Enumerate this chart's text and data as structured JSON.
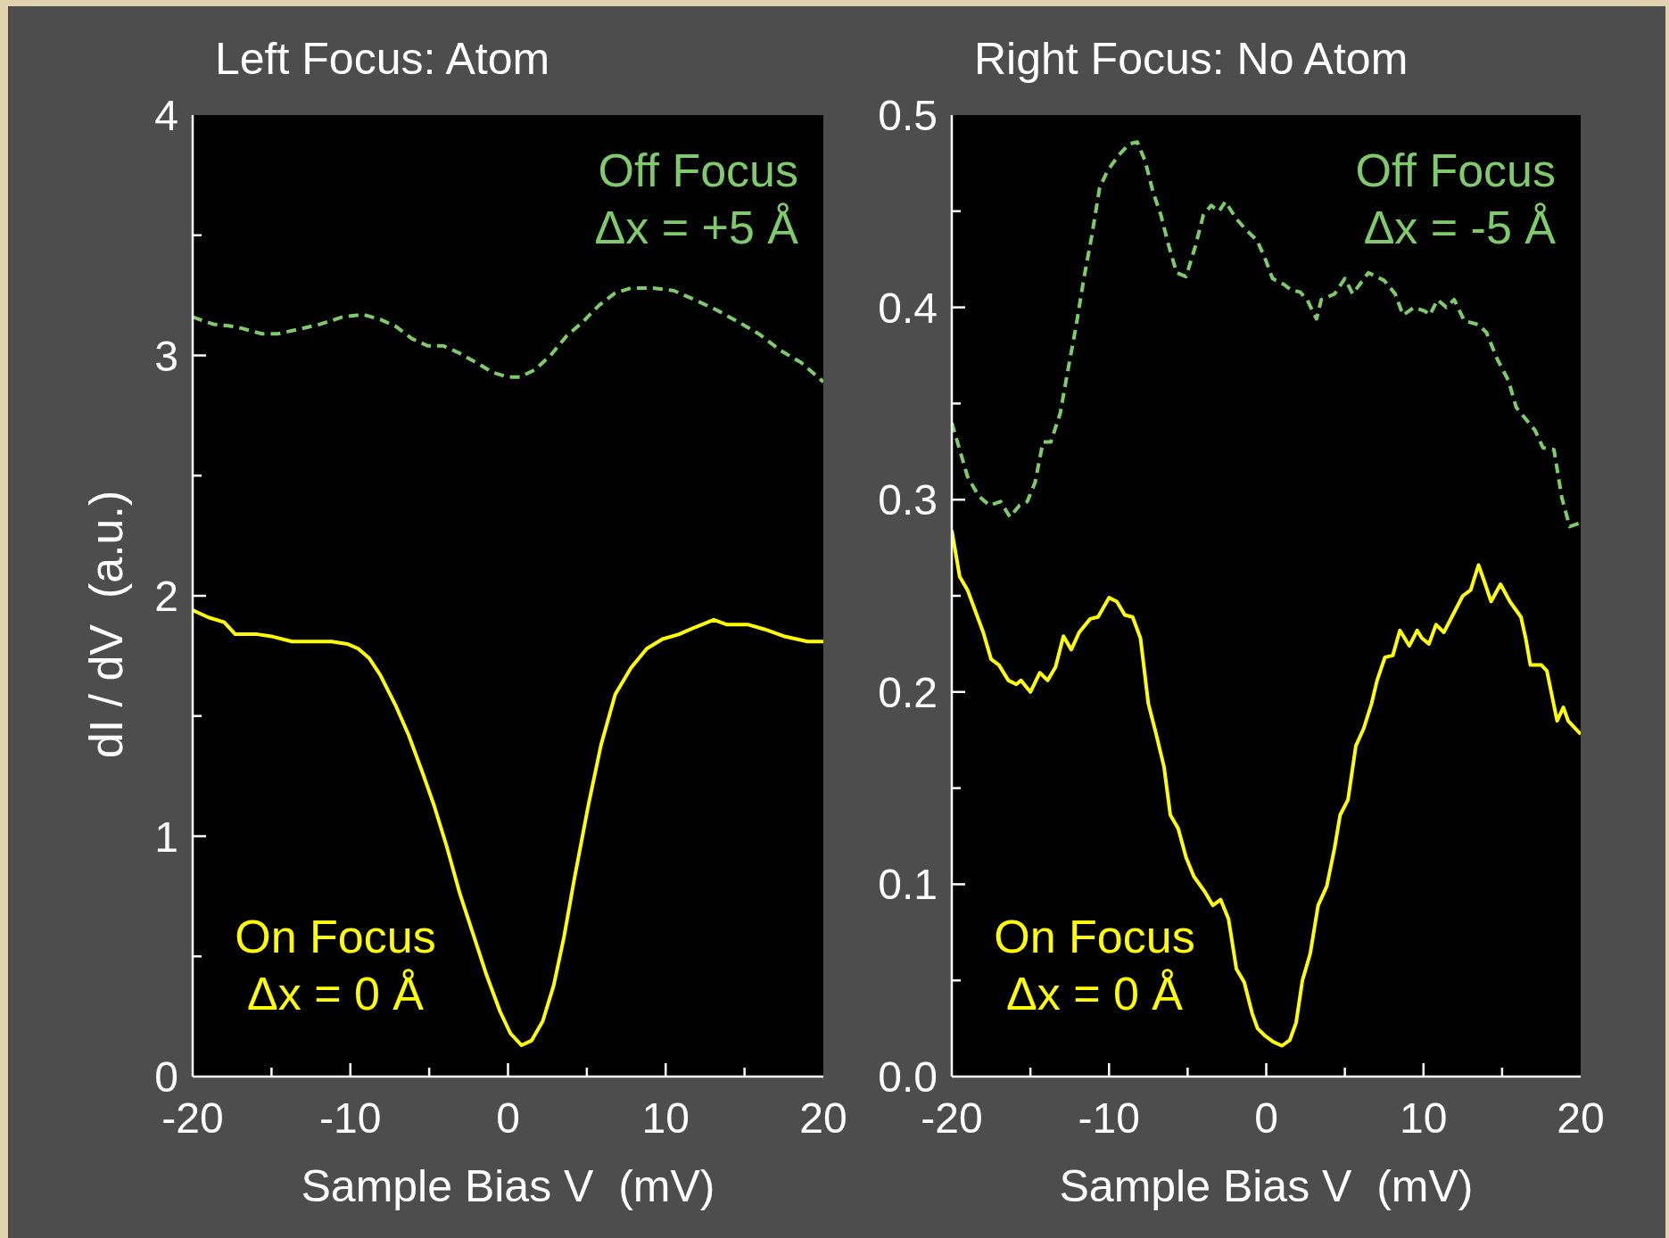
{
  "chart_data": [
    {
      "type": "line",
      "title": "Left Focus: Atom",
      "xlabel": "Sample Bias V  (mV)",
      "ylabel": "dI / dV  (a.u.)",
      "xlim": [
        -20,
        20
      ],
      "xticks": [
        -20,
        {
          "value": -15,
          "label": null
        },
        -10,
        {
          "value": -5,
          "label": null
        },
        0,
        {
          "value": 5,
          "label": null
        },
        10,
        {
          "value": 15,
          "label": null
        },
        20
      ],
      "ylim": [
        0,
        4
      ],
      "yticks": [
        0,
        {
          "value": 0.5,
          "label": null
        },
        1,
        {
          "value": 1.5,
          "label": null
        },
        2,
        {
          "value": 2.5,
          "label": null
        },
        3,
        {
          "value": 3.5,
          "label": null
        },
        4
      ],
      "series": [
        {
          "name": "Off Focus\nΔx = +5 Å",
          "color": "#7fcb6c",
          "line_style": "dashed",
          "x": [
            -20,
            -18.7,
            -17.3,
            -15.6,
            -14.6,
            -13.2,
            -11.9,
            -10.5,
            -9.2,
            -8.1,
            -7.1,
            -6.1,
            -5.1,
            -4.1,
            -3.1,
            -2.0,
            -1.0,
            0.0,
            0.75,
            1.7,
            2.7,
            3.7,
            4.75,
            5.8,
            6.8,
            7.8,
            9.2,
            10.5,
            11.9,
            13.2,
            14.6,
            15.9,
            17.3,
            18.6,
            20
          ],
          "values": [
            3.16,
            3.13,
            3.12,
            3.09,
            3.09,
            3.11,
            3.13,
            3.16,
            3.17,
            3.15,
            3.12,
            3.07,
            3.04,
            3.04,
            3.01,
            2.97,
            2.93,
            2.91,
            2.91,
            2.94,
            3.0,
            3.08,
            3.14,
            3.21,
            3.26,
            3.28,
            3.28,
            3.27,
            3.23,
            3.19,
            3.14,
            3.09,
            3.02,
            2.97,
            2.89
          ]
        },
        {
          "name": "On Focus\nΔx = 0 Å",
          "color": "#ffff00",
          "line_style": "solid",
          "x": [
            -20,
            -19,
            -18,
            -17.3,
            -15.9,
            -14.9,
            -13.7,
            -12.5,
            -11.2,
            -10.2,
            -9.5,
            -8.8,
            -8.1,
            -7.1,
            -6.3,
            -5.4,
            -4.7,
            -3.9,
            -3.05,
            -2.2,
            -1.35,
            -0.5,
            0.15,
            0.85,
            1.5,
            2.2,
            2.9,
            3.55,
            4.2,
            5.1,
            5.9,
            6.8,
            7.8,
            8.8,
            9.8,
            10.85,
            11.9,
            13.05,
            13.9,
            15.25,
            16.3,
            17.6,
            19.0,
            20
          ],
          "values": [
            1.94,
            1.91,
            1.89,
            1.84,
            1.84,
            1.83,
            1.81,
            1.81,
            1.81,
            1.8,
            1.78,
            1.74,
            1.67,
            1.54,
            1.42,
            1.26,
            1.13,
            0.96,
            0.76,
            0.59,
            0.42,
            0.27,
            0.18,
            0.13,
            0.15,
            0.23,
            0.38,
            0.58,
            0.82,
            1.13,
            1.38,
            1.59,
            1.7,
            1.78,
            1.82,
            1.84,
            1.87,
            1.9,
            1.88,
            1.88,
            1.86,
            1.83,
            1.81,
            1.81
          ]
        }
      ]
    },
    {
      "type": "line",
      "title": "Right Focus: No Atom",
      "xlabel": "Sample Bias V  (mV)",
      "xlim": [
        -20,
        20
      ],
      "xticks": [
        -20,
        {
          "value": -15,
          "label": null
        },
        -10,
        {
          "value": -5,
          "label": null
        },
        0,
        {
          "value": 5,
          "label": null
        },
        10,
        {
          "value": 15,
          "label": null
        },
        20
      ],
      "ylim": [
        0,
        0.5
      ],
      "yticks": [
        {
          "value": 0,
          "label": "0.0"
        },
        {
          "value": 0.05,
          "label": null
        },
        0.1,
        {
          "value": 0.15,
          "label": null
        },
        0.2,
        {
          "value": 0.25,
          "label": null
        },
        0.3,
        {
          "value": 0.35,
          "label": null
        },
        0.4,
        {
          "value": 0.45,
          "label": null
        },
        0.5
      ],
      "series": [
        {
          "name": "Off Focus\nΔx = -5 Å",
          "color": "#7fcb6c",
          "line_style": "dashed",
          "x": [
            -20,
            -19.5,
            -19,
            -18.3,
            -17.6,
            -16.9,
            -16.3,
            -15.7,
            -15.2,
            -14.7,
            -14.2,
            -13.7,
            -13.1,
            -12.6,
            -12.1,
            -11.6,
            -11.1,
            -10.6,
            -10.1,
            -9.4,
            -8.7,
            -8.2,
            -7.7,
            -7.2,
            -6.7,
            -6.2,
            -5.7,
            -5.1,
            -4.5,
            -4.0,
            -3.5,
            -3.0,
            -2.6,
            -1.9,
            -1.25,
            -0.6,
            -0.1,
            0.4,
            1.1,
            1.6,
            2.15,
            2.6,
            3.2,
            3.5,
            4.35,
            5.0,
            5.5,
            6.5,
            7.5,
            8.2,
            8.7,
            9.4,
            10.1,
            10.4,
            10.9,
            11.45,
            11.95,
            12.6,
            13.5,
            14.0,
            14.7,
            15.4,
            15.9,
            16.4,
            17.1,
            17.6,
            18.3,
            18.8,
            19.3,
            20
          ],
          "values": [
            0.34,
            0.326,
            0.312,
            0.302,
            0.297,
            0.299,
            0.291,
            0.297,
            0.299,
            0.309,
            0.33,
            0.33,
            0.345,
            0.368,
            0.39,
            0.415,
            0.437,
            0.462,
            0.471,
            0.479,
            0.485,
            0.486,
            0.476,
            0.46,
            0.448,
            0.432,
            0.418,
            0.416,
            0.432,
            0.448,
            0.453,
            0.45,
            0.455,
            0.446,
            0.44,
            0.435,
            0.426,
            0.415,
            0.412,
            0.409,
            0.408,
            0.404,
            0.394,
            0.404,
            0.407,
            0.415,
            0.407,
            0.418,
            0.414,
            0.407,
            0.396,
            0.4,
            0.398,
            0.396,
            0.404,
            0.4,
            0.404,
            0.393,
            0.391,
            0.387,
            0.373,
            0.362,
            0.348,
            0.343,
            0.336,
            0.327,
            0.326,
            0.301,
            0.286,
            0.288
          ]
        },
        {
          "name": "On Focus\nΔx = 0 Å",
          "color": "#ffff00",
          "line_style": "solid",
          "x": [
            -20,
            -19.5,
            -19,
            -18.5,
            -18,
            -17.5,
            -17,
            -16.4,
            -15.9,
            -15.6,
            -15,
            -14.4,
            -13.9,
            -13.4,
            -12.9,
            -12.4,
            -11.9,
            -11.2,
            -10.7,
            -10,
            -9.5,
            -9,
            -8.5,
            -8,
            -7.5,
            -7,
            -6.5,
            -6.1,
            -5.6,
            -5.1,
            -4.6,
            -3.9,
            -3.4,
            -2.9,
            -2.4,
            -1.9,
            -1.4,
            -0.9,
            -0.55,
            -0.05,
            0.45,
            1,
            1.5,
            1.9,
            2.3,
            2.8,
            3.3,
            3.85,
            4.35,
            4.7,
            5.2,
            5.7,
            6.2,
            6.7,
            7.05,
            7.55,
            8.05,
            8.5,
            9.1,
            9.6,
            9.9,
            10.35,
            10.8,
            11.3,
            11.8,
            12.5,
            13,
            13.5,
            13.85,
            14.3,
            14.9,
            15.5,
            16.2,
            16.5,
            16.8,
            17.5,
            17.85,
            18.5,
            18.9,
            19.2,
            20
          ],
          "values": [
            0.284,
            0.26,
            0.253,
            0.242,
            0.231,
            0.217,
            0.214,
            0.206,
            0.204,
            0.206,
            0.2,
            0.21,
            0.206,
            0.213,
            0.229,
            0.222,
            0.231,
            0.238,
            0.239,
            0.249,
            0.247,
            0.24,
            0.239,
            0.228,
            0.194,
            0.178,
            0.161,
            0.136,
            0.129,
            0.114,
            0.104,
            0.096,
            0.089,
            0.092,
            0.082,
            0.056,
            0.049,
            0.033,
            0.025,
            0.021,
            0.018,
            0.016,
            0.019,
            0.028,
            0.05,
            0.064,
            0.089,
            0.099,
            0.119,
            0.136,
            0.144,
            0.172,
            0.181,
            0.194,
            0.206,
            0.218,
            0.219,
            0.232,
            0.224,
            0.232,
            0.228,
            0.225,
            0.235,
            0.231,
            0.239,
            0.25,
            0.253,
            0.266,
            0.258,
            0.247,
            0.256,
            0.247,
            0.239,
            0.228,
            0.214,
            0.214,
            0.211,
            0.185,
            0.192,
            0.185,
            0.178
          ]
        }
      ]
    }
  ]
}
